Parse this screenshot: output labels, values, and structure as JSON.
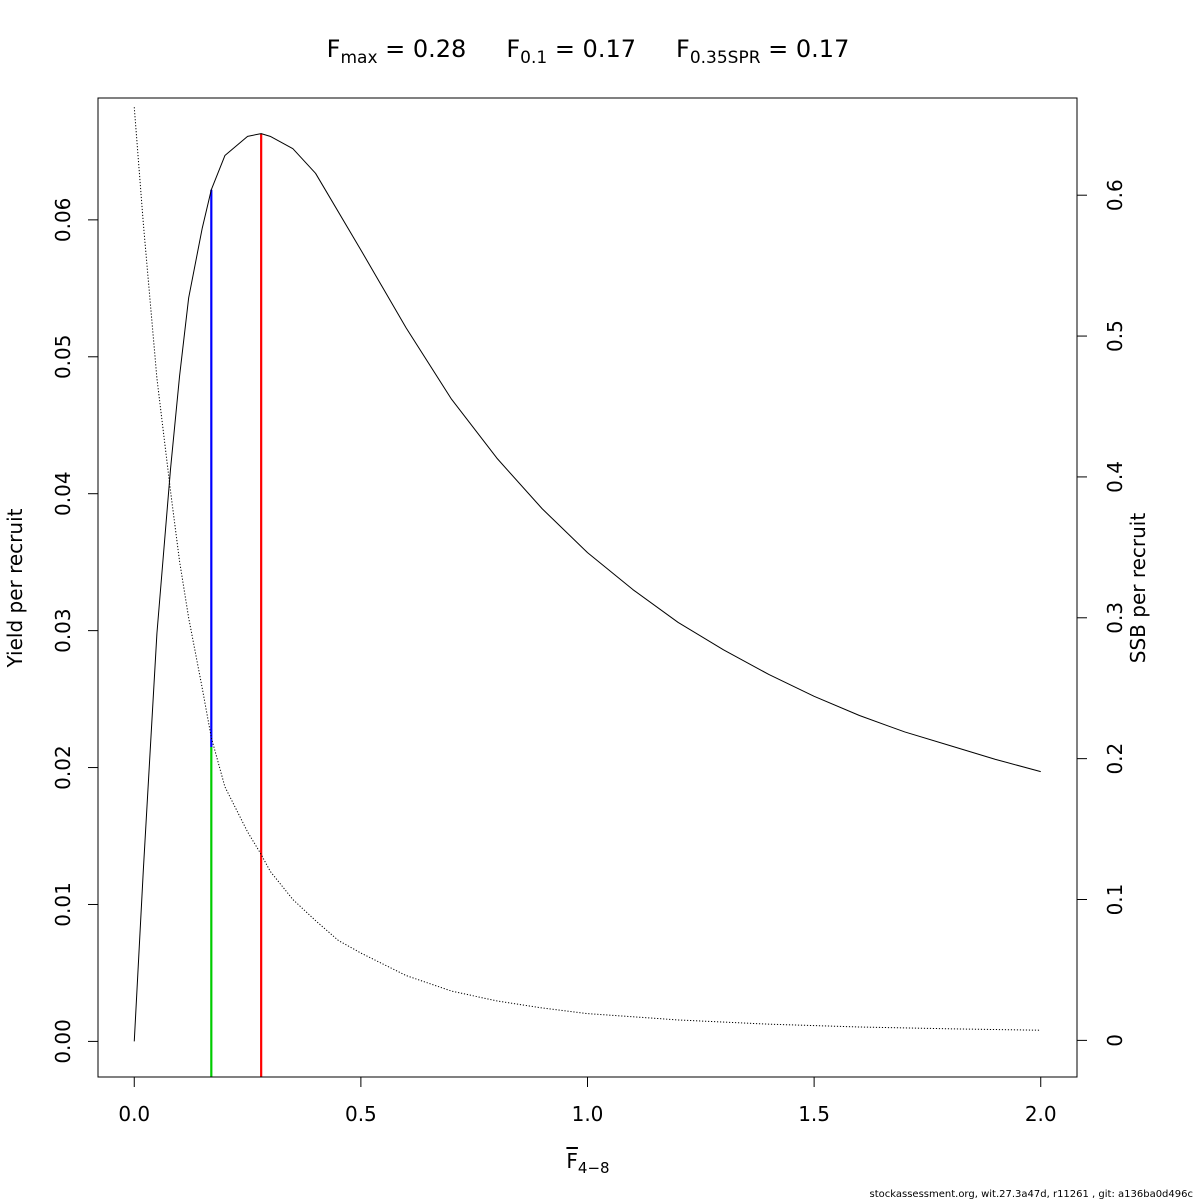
{
  "chart_data": {
    "type": "line",
    "title": {
      "parts": [
        {
          "base": "F",
          "sub": "max",
          "value": " = 0.28"
        },
        {
          "base": "F",
          "sub": "0.1",
          "value": " = 0.17"
        },
        {
          "base": "F",
          "sub": "0.35SPR",
          "value": " = 0.17"
        }
      ]
    },
    "xlabel": {
      "base": "F",
      "sub": "4−8",
      "overline": true
    },
    "ylabel_left": "Yield per recruit",
    "ylabel_right": "SSB per recruit",
    "xlim": [
      -0.08,
      2.08
    ],
    "ylim_left": [
      -0.0026,
      0.0689
    ],
    "ylim_right": [
      -0.026,
      0.669
    ],
    "x_ticks": [
      0.0,
      0.5,
      1.0,
      1.5,
      2.0
    ],
    "x_tick_labels": [
      "0.0",
      "0.5",
      "1.0",
      "1.5",
      "2.0"
    ],
    "y_ticks_left": [
      0.0,
      0.01,
      0.02,
      0.03,
      0.04,
      0.05,
      0.06
    ],
    "y_tick_labels_left": [
      "0.00",
      "0.01",
      "0.02",
      "0.03",
      "0.04",
      "0.05",
      "0.06"
    ],
    "y_ticks_right": [
      0,
      0.1,
      0.2,
      0.3,
      0.4,
      0.5,
      0.6
    ],
    "y_tick_labels_right": [
      "0",
      "0.1",
      "0.2",
      "0.3",
      "0.4",
      "0.5",
      "0.6"
    ],
    "series": [
      {
        "axis": "left",
        "style": "solid",
        "color": "#000000",
        "x": [
          0,
          0.02,
          0.05,
          0.08,
          0.1,
          0.12,
          0.15,
          0.17,
          0.2,
          0.25,
          0.28,
          0.3,
          0.35,
          0.4,
          0.5,
          0.6,
          0.7,
          0.8,
          0.9,
          1.0,
          1.1,
          1.2,
          1.3,
          1.4,
          1.5,
          1.6,
          1.7,
          1.8,
          1.9,
          2.0
        ],
        "y": [
          0,
          0.0125,
          0.0298,
          0.0418,
          0.0486,
          0.0543,
          0.0594,
          0.0622,
          0.0647,
          0.0661,
          0.0663,
          0.0661,
          0.0652,
          0.0634,
          0.0578,
          0.0521,
          0.0469,
          0.0426,
          0.0389,
          0.0357,
          0.033,
          0.0306,
          0.0286,
          0.0268,
          0.0252,
          0.0238,
          0.0226,
          0.0216,
          0.0206,
          0.0197
        ]
      },
      {
        "axis": "right",
        "style": "dotted",
        "color": "#000000",
        "x": [
          0,
          0.02,
          0.05,
          0.08,
          0.1,
          0.12,
          0.15,
          0.17,
          0.2,
          0.25,
          0.28,
          0.3,
          0.35,
          0.4,
          0.45,
          0.5,
          0.6,
          0.7,
          0.8,
          0.9,
          1.0,
          1.2,
          1.4,
          1.6,
          1.8,
          2.0
        ],
        "y": [
          0.6625,
          0.58,
          0.47,
          0.39,
          0.34,
          0.3,
          0.25,
          0.215,
          0.18,
          0.148,
          0.132,
          0.12,
          0.1,
          0.085,
          0.071,
          0.062,
          0.046,
          0.035,
          0.028,
          0.023,
          0.019,
          0.0145,
          0.0115,
          0.0095,
          0.0082,
          0.0072
        ]
      }
    ],
    "reference_lines": [
      {
        "name": "fmax",
        "x": 0.28,
        "y_from": -0.0026,
        "y_to": 0.0663,
        "color": "#ff0000"
      },
      {
        "name": "f01-yield",
        "x": 0.17,
        "y_from": 0.0215,
        "y_to": 0.0622,
        "color": "#0000ff"
      },
      {
        "name": "f035spr-ssb",
        "x": 0.17,
        "y_from": -0.0026,
        "y_to": 0.0215,
        "color": "#00cc00"
      }
    ]
  },
  "footer": "stockassessment.org, wit.27.3a47d, r11261 , git: a136ba0d496c"
}
